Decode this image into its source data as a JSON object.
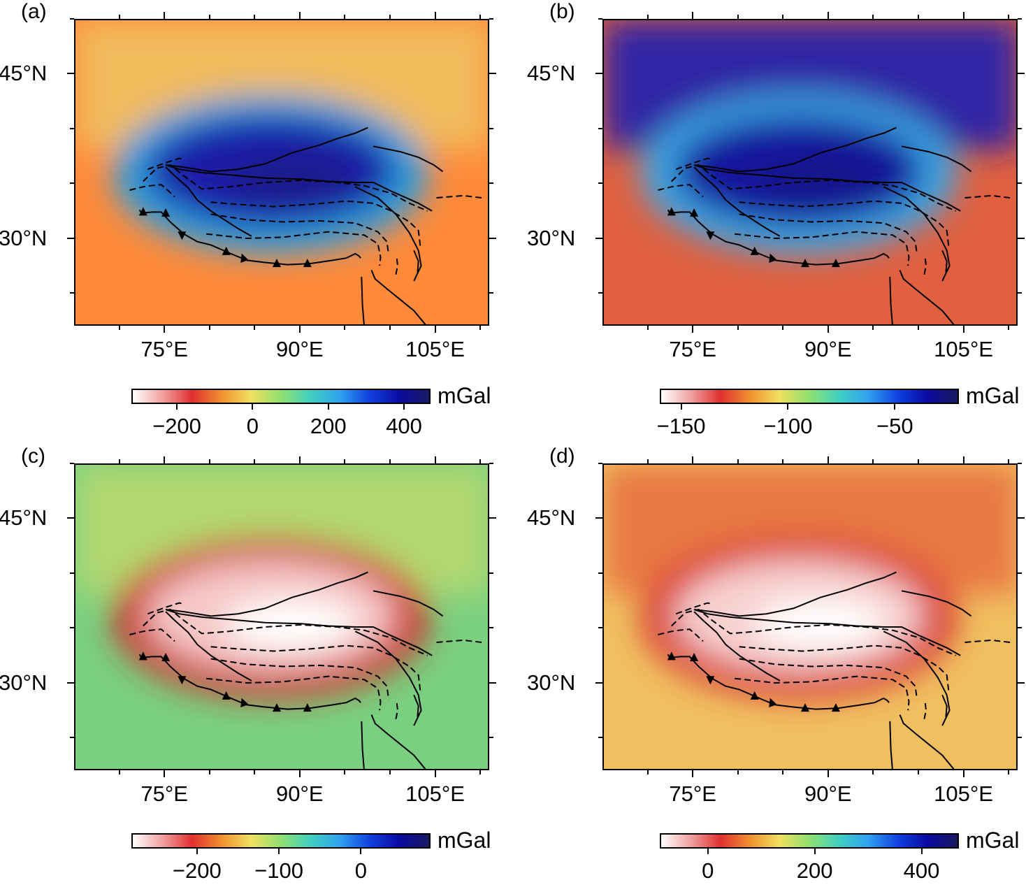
{
  "axes": {
    "lon_ticks": [
      "75°E",
      "90°E",
      "105°E"
    ],
    "lat_ticks": [
      "45°N",
      "30°N"
    ],
    "lon_range": [
      65,
      111
    ],
    "lat_range": [
      22,
      50
    ]
  },
  "panels": [
    {
      "label": "(a)",
      "unit": "mGal",
      "cbar_ticks": [
        "−200",
        "0",
        "200",
        "400"
      ],
      "range": [
        -320,
        470
      ],
      "colors": {
        "high": "#1a1a8c",
        "plateau": "#1a1aa8",
        "rim": "#2a9ee0",
        "low": "#ff8a3a",
        "north": "#f0c060"
      }
    },
    {
      "label": "(b)",
      "unit": "mGal",
      "cbar_ticks": [
        "−150",
        "−100",
        "−50"
      ],
      "range": [
        -160,
        -20
      ],
      "colors": {
        "high": "#14148c",
        "plateau": "#16169e",
        "rim": "#3aa8e8",
        "low": "#e06040",
        "north": "#2020b0"
      }
    },
    {
      "label": "(c)",
      "unit": "mGal",
      "cbar_ticks": [
        "−200",
        "−100",
        "0"
      ],
      "range": [
        -280,
        85
      ],
      "colors": {
        "high": "#ffffff",
        "plateau": "#f6c8c8",
        "rim": "#d02828",
        "low": "#7ad080",
        "north": "#b8d870"
      }
    },
    {
      "label": "(d)",
      "unit": "mGal",
      "cbar_ticks": [
        "0",
        "200",
        "400"
      ],
      "range": [
        -90,
        470
      ],
      "colors": {
        "high": "#ffffff",
        "plateau": "#f8d0d0",
        "rim": "#d83030",
        "low": "#f0c060",
        "north": "#e87040"
      }
    }
  ],
  "colormap": [
    "#ffffff",
    "#f0a0a0",
    "#e03030",
    "#f09030",
    "#f0e060",
    "#90e070",
    "#40d0c0",
    "#30a0f0",
    "#1040e0",
    "#0a0aa0",
    "#1a1a60"
  ]
}
